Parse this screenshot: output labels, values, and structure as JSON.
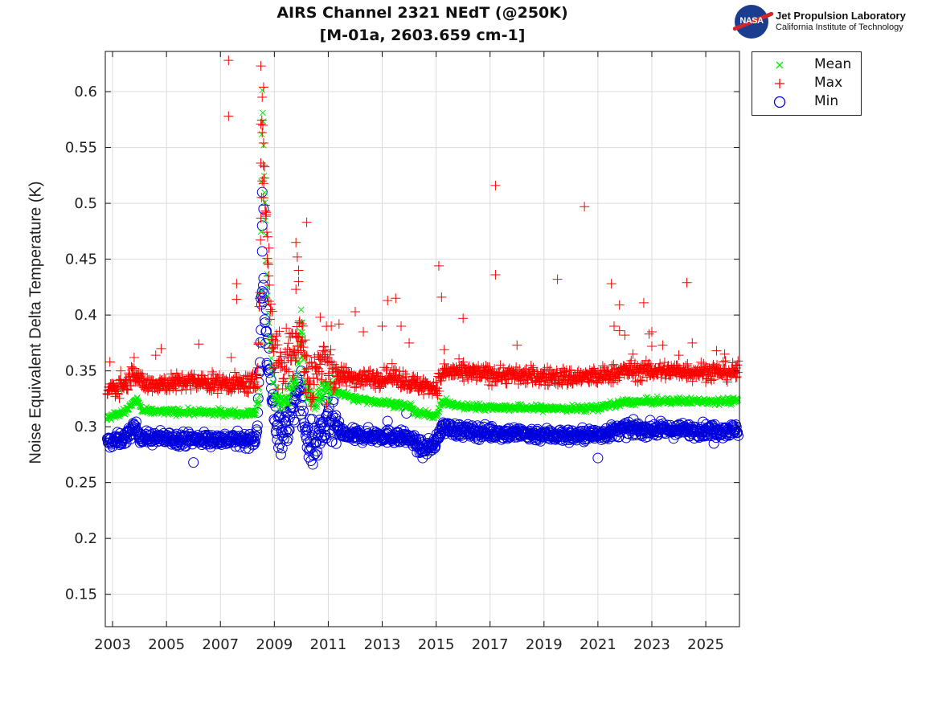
{
  "chart_data": {
    "type": "scatter",
    "title": "AIRS Channel 2321 NEdT (@250K)",
    "subtitle": "[M-01a, 2603.659 cm-1]",
    "xlabel": "",
    "ylabel": "Noise Equivalent Delta Temperature (K)",
    "xlim": [
      2002.73,
      2026.25
    ],
    "ylim": [
      0.121,
      0.636
    ],
    "xticks": [
      2003,
      2005,
      2007,
      2009,
      2011,
      2013,
      2015,
      2017,
      2019,
      2021,
      2023,
      2025
    ],
    "xtick_labels": [
      "2003",
      "2005",
      "2007",
      "2009",
      "2011",
      "2013",
      "2015",
      "2017",
      "2019",
      "2021",
      "2023",
      "2025"
    ],
    "yticks": [
      0.15,
      0.2,
      0.25,
      0.3,
      0.35,
      0.4,
      0.45,
      0.5,
      0.55,
      0.6
    ],
    "ytick_labels": [
      "0.15",
      "0.2",
      "0.25",
      "0.3",
      "0.35",
      "0.4",
      "0.45",
      "0.5",
      "0.55",
      "0.6"
    ],
    "grid": true,
    "legend_position": "outside-top-right",
    "series": [
      {
        "name": "Mean",
        "marker": "x",
        "color": "#00ee00",
        "trend": [
          [
            2002.8,
            0.308
          ],
          [
            2003.5,
            0.314
          ],
          [
            2003.9,
            0.325
          ],
          [
            2004.1,
            0.314
          ],
          [
            2006.0,
            0.313
          ],
          [
            2008.3,
            0.312
          ],
          [
            2008.45,
            0.33
          ],
          [
            2008.55,
            0.6
          ],
          [
            2008.7,
            0.45
          ],
          [
            2008.85,
            0.37
          ],
          [
            2009.0,
            0.33
          ],
          [
            2009.3,
            0.32
          ],
          [
            2009.8,
            0.34
          ],
          [
            2010.0,
            0.395
          ],
          [
            2010.2,
            0.33
          ],
          [
            2010.5,
            0.32
          ],
          [
            2010.9,
            0.335
          ],
          [
            2011.5,
            0.33
          ],
          [
            2012.0,
            0.325
          ],
          [
            2013.0,
            0.322
          ],
          [
            2014.0,
            0.318
          ],
          [
            2014.3,
            0.312
          ],
          [
            2015.0,
            0.31
          ],
          [
            2015.2,
            0.322
          ],
          [
            2016.0,
            0.318
          ],
          [
            2018.0,
            0.317
          ],
          [
            2020.0,
            0.316
          ],
          [
            2021.0,
            0.317
          ],
          [
            2022.0,
            0.322
          ],
          [
            2024.0,
            0.323
          ],
          [
            2026.2,
            0.323
          ]
        ],
        "spread": 0.003
      },
      {
        "name": "Max",
        "marker": "+",
        "color": "#ff0000",
        "trend": [
          [
            2002.8,
            0.333
          ],
          [
            2003.5,
            0.338
          ],
          [
            2003.8,
            0.35
          ],
          [
            2004.1,
            0.338
          ],
          [
            2006.0,
            0.34
          ],
          [
            2008.3,
            0.338
          ],
          [
            2008.45,
            0.4
          ],
          [
            2008.55,
            0.57
          ],
          [
            2008.7,
            0.48
          ],
          [
            2008.85,
            0.4
          ],
          [
            2009.0,
            0.37
          ],
          [
            2009.3,
            0.35
          ],
          [
            2009.7,
            0.375
          ],
          [
            2010.0,
            0.38
          ],
          [
            2010.3,
            0.34
          ],
          [
            2010.7,
            0.355
          ],
          [
            2011.0,
            0.36
          ],
          [
            2011.4,
            0.345
          ],
          [
            2012.5,
            0.343
          ],
          [
            2013.5,
            0.345
          ],
          [
            2014.2,
            0.338
          ],
          [
            2015.0,
            0.335
          ],
          [
            2015.3,
            0.35
          ],
          [
            2016.0,
            0.348
          ],
          [
            2018.0,
            0.346
          ],
          [
            2020.0,
            0.344
          ],
          [
            2021.0,
            0.345
          ],
          [
            2022.0,
            0.35
          ],
          [
            2024.0,
            0.35
          ],
          [
            2026.2,
            0.349
          ]
        ],
        "spread": 0.008,
        "outliers": [
          [
            2002.9,
            0.358
          ],
          [
            2003.3,
            0.35
          ],
          [
            2003.8,
            0.362
          ],
          [
            2004.6,
            0.364
          ],
          [
            2004.8,
            0.37
          ],
          [
            2006.2,
            0.374
          ],
          [
            2007.3,
            0.628
          ],
          [
            2007.3,
            0.578
          ],
          [
            2007.6,
            0.428
          ],
          [
            2007.6,
            0.414
          ],
          [
            2007.4,
            0.362
          ],
          [
            2008.5,
            0.623
          ],
          [
            2008.55,
            0.595
          ],
          [
            2008.6,
            0.604
          ],
          [
            2008.5,
            0.571
          ],
          [
            2008.6,
            0.554
          ],
          [
            2008.5,
            0.536
          ],
          [
            2008.55,
            0.52
          ],
          [
            2008.6,
            0.505
          ],
          [
            2008.7,
            0.49
          ],
          [
            2008.75,
            0.47
          ],
          [
            2008.8,
            0.46
          ],
          [
            2009.8,
            0.465
          ],
          [
            2009.85,
            0.452
          ],
          [
            2009.9,
            0.44
          ],
          [
            2009.9,
            0.43
          ],
          [
            2009.8,
            0.423
          ],
          [
            2010.2,
            0.483
          ],
          [
            2010.7,
            0.398
          ],
          [
            2011.4,
            0.392
          ],
          [
            2012.0,
            0.403
          ],
          [
            2012.3,
            0.385
          ],
          [
            2013.2,
            0.413
          ],
          [
            2013.5,
            0.415
          ],
          [
            2013.0,
            0.39
          ],
          [
            2013.7,
            0.39
          ],
          [
            2014.0,
            0.375
          ],
          [
            2015.1,
            0.444
          ],
          [
            2015.2,
            0.416
          ],
          [
            2015.3,
            0.369
          ],
          [
            2016.0,
            0.397
          ],
          [
            2017.2,
            0.516
          ],
          [
            2017.2,
            0.436
          ],
          [
            2018.0,
            0.373
          ],
          [
            2019.5,
            0.432
          ],
          [
            2020.5,
            0.497
          ],
          [
            2021.5,
            0.428
          ],
          [
            2021.6,
            0.39
          ],
          [
            2021.8,
            0.386
          ],
          [
            2021.8,
            0.409
          ],
          [
            2022.0,
            0.382
          ],
          [
            2022.3,
            0.365
          ],
          [
            2022.7,
            0.411
          ],
          [
            2022.9,
            0.383
          ],
          [
            2023.0,
            0.385
          ],
          [
            2023.0,
            0.372
          ],
          [
            2023.4,
            0.373
          ],
          [
            2024.0,
            0.364
          ],
          [
            2024.3,
            0.429
          ],
          [
            2024.5,
            0.375
          ],
          [
            2025.4,
            0.368
          ],
          [
            2025.7,
            0.365
          ]
        ]
      },
      {
        "name": "Min",
        "marker": "o",
        "color": "#0000dd",
        "trend": [
          [
            2002.8,
            0.286
          ],
          [
            2003.5,
            0.29
          ],
          [
            2003.8,
            0.3
          ],
          [
            2004.1,
            0.29
          ],
          [
            2006.0,
            0.289
          ],
          [
            2008.3,
            0.288
          ],
          [
            2008.45,
            0.34
          ],
          [
            2008.55,
            0.43
          ],
          [
            2008.7,
            0.38
          ],
          [
            2008.85,
            0.34
          ],
          [
            2009.0,
            0.31
          ],
          [
            2009.3,
            0.295
          ],
          [
            2009.6,
            0.31
          ],
          [
            2009.8,
            0.325
          ],
          [
            2010.0,
            0.33
          ],
          [
            2010.2,
            0.29
          ],
          [
            2010.5,
            0.282
          ],
          [
            2010.8,
            0.3
          ],
          [
            2011.2,
            0.302
          ],
          [
            2011.6,
            0.292
          ],
          [
            2013.0,
            0.292
          ],
          [
            2014.0,
            0.29
          ],
          [
            2014.5,
            0.28
          ],
          [
            2015.0,
            0.285
          ],
          [
            2015.2,
            0.3
          ],
          [
            2016.0,
            0.296
          ],
          [
            2018.0,
            0.294
          ],
          [
            2020.0,
            0.292
          ],
          [
            2021.0,
            0.293
          ],
          [
            2022.0,
            0.298
          ],
          [
            2024.0,
            0.297
          ],
          [
            2026.2,
            0.297
          ]
        ],
        "spread": 0.006,
        "outliers": [
          [
            2006.0,
            0.268
          ],
          [
            2008.55,
            0.51
          ],
          [
            2008.6,
            0.495
          ],
          [
            2008.55,
            0.48
          ],
          [
            2008.55,
            0.457
          ],
          [
            2008.6,
            0.433
          ],
          [
            2008.5,
            0.415
          ],
          [
            2008.7,
            0.405
          ],
          [
            2010.0,
            0.35
          ],
          [
            2013.9,
            0.312
          ],
          [
            2013.2,
            0.305
          ],
          [
            2014.5,
            0.272
          ],
          [
            2021.0,
            0.272
          ],
          [
            2025.3,
            0.285
          ]
        ]
      }
    ]
  },
  "legend": {
    "items": [
      {
        "label": "Mean",
        "color": "#00ee00"
      },
      {
        "label": "Max",
        "color": "#ff0000"
      },
      {
        "label": "Min",
        "color": "#0000dd"
      }
    ]
  },
  "logo": {
    "nasa": "NASA",
    "line1": "Jet Propulsion Laboratory",
    "line2": "California Institute of Technology"
  }
}
